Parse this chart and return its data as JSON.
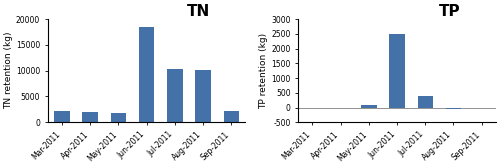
{
  "categories": [
    "Mar-2011",
    "Apr-2011",
    "May-2011",
    "Jun-2011",
    "Jul-2011",
    "Aug-2011",
    "Sep-2011"
  ],
  "TN_values": [
    2200,
    1900,
    1750,
    18500,
    10300,
    10100,
    2200
  ],
  "TP_values": [
    -30,
    -30,
    70,
    2480,
    400,
    -60,
    -20
  ],
  "TN_ylim": [
    0,
    20000
  ],
  "TP_ylim": [
    -500,
    3000
  ],
  "TN_yticks": [
    0,
    5000,
    10000,
    15000,
    20000
  ],
  "TP_yticks": [
    -500,
    0,
    500,
    1000,
    1500,
    2000,
    2500,
    3000
  ],
  "TN_ylabel": "TN retention (kg)",
  "TP_ylabel": "TP retention (kg)",
  "TN_title": "TN",
  "TP_title": "TP",
  "bar_color": "#4472a8",
  "background_color": "#ffffff",
  "title_fontsize": 11,
  "axis_fontsize": 6.5,
  "tick_fontsize": 5.5
}
